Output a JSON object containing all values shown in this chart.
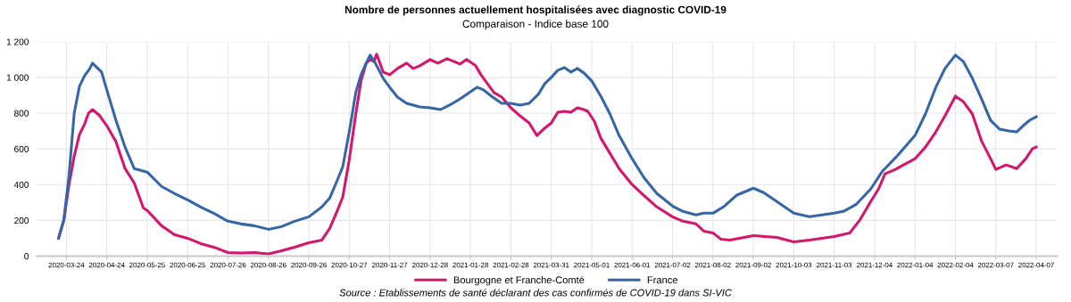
{
  "chart_data": {
    "type": "line",
    "title": "Nombre de personnes actuellement hospitalisées avec diagnostic COVID-19",
    "subtitle": "Comparaison - Indice base 100",
    "annotations": [
      "Source : Etablissements de santé déclarant des cas confirmés de COVID-19 dans SI-VIC"
    ],
    "xlim": [
      "2020-03-01",
      "2022-04-23"
    ],
    "xticks": [
      "2020-03-24",
      "2020-04-24",
      "2020-05-25",
      "2020-06-25",
      "2020-07-26",
      "2020-08-26",
      "2020-09-26",
      "2020-10-27",
      "2020-11-27",
      "2020-12-28",
      "2021-01-28",
      "2021-02-28",
      "2021-03-31",
      "2021-05-01",
      "2021-06-01",
      "2021-07-02",
      "2021-08-02",
      "2021-09-02",
      "2021-10-03",
      "2021-11-03",
      "2021-12-04",
      "2022-01-04",
      "2022-02-04",
      "2022-03-07",
      "2022-04-07"
    ],
    "ylim": [
      0,
      1200
    ],
    "yticks": [
      0,
      200,
      400,
      600,
      800,
      {
        "value": 1000,
        "label": "1 000"
      },
      {
        "value": 1200,
        "label": "1 200"
      }
    ],
    "grid": true,
    "legend": "bottom",
    "line_style": "solid",
    "marker": "none",
    "series": [
      {
        "name": "Bourgogne et Franche-Comté",
        "color": "#d6156c",
        "x": [
          "2020-03-18",
          "2020-03-22",
          "2020-03-26",
          "2020-03-30",
          "2020-04-03",
          "2020-04-07",
          "2020-04-10",
          "2020-04-13",
          "2020-04-18",
          "2020-04-24",
          "2020-05-01",
          "2020-05-08",
          "2020-05-15",
          "2020-05-22",
          "2020-05-25",
          "2020-06-05",
          "2020-06-15",
          "2020-06-25",
          "2020-07-05",
          "2020-07-15",
          "2020-07-26",
          "2020-08-05",
          "2020-08-15",
          "2020-08-26",
          "2020-09-05",
          "2020-09-15",
          "2020-09-26",
          "2020-10-06",
          "2020-10-12",
          "2020-10-17",
          "2020-10-22",
          "2020-10-27",
          "2020-11-01",
          "2020-11-05",
          "2020-11-09",
          "2020-11-12",
          "2020-11-15",
          "2020-11-17",
          "2020-11-22",
          "2020-11-27",
          "2020-12-03",
          "2020-12-10",
          "2020-12-15",
          "2020-12-20",
          "2020-12-28",
          "2021-01-03",
          "2021-01-10",
          "2021-01-20",
          "2021-01-25",
          "2021-02-01",
          "2021-02-05",
          "2021-02-10",
          "2021-02-15",
          "2021-02-21",
          "2021-02-28",
          "2021-03-07",
          "2021-03-14",
          "2021-03-20",
          "2021-03-25",
          "2021-03-31",
          "2021-04-05",
          "2021-04-10",
          "2021-04-15",
          "2021-04-20",
          "2021-04-25",
          "2021-04-28",
          "2021-05-03",
          "2021-05-08",
          "2021-05-15",
          "2021-05-22",
          "2021-06-01",
          "2021-06-10",
          "2021-06-20",
          "2021-07-02",
          "2021-07-10",
          "2021-07-20",
          "2021-07-26",
          "2021-08-02",
          "2021-08-08",
          "2021-08-15",
          "2021-09-02",
          "2021-09-20",
          "2021-10-03",
          "2021-10-15",
          "2021-11-03",
          "2021-11-15",
          "2021-11-23",
          "2021-12-01",
          "2021-12-07",
          "2021-12-12",
          "2021-12-20",
          "2022-01-04",
          "2022-01-12",
          "2022-01-20",
          "2022-01-27",
          "2022-02-04",
          "2022-02-10",
          "2022-02-17",
          "2022-02-24",
          "2022-03-03",
          "2022-03-07",
          "2022-03-15",
          "2022-03-23",
          "2022-03-30",
          "2022-04-04",
          "2022-04-07"
        ],
        "values": [
          100,
          200,
          400,
          560,
          680,
          740,
          800,
          820,
          790,
          730,
          640,
          490,
          410,
          270,
          255,
          170,
          120,
          100,
          70,
          50,
          20,
          17,
          20,
          12,
          30,
          50,
          75,
          90,
          155,
          240,
          330,
          540,
          795,
          980,
          1080,
          1100,
          1090,
          1130,
          1030,
          1015,
          1050,
          1080,
          1050,
          1065,
          1100,
          1080,
          1105,
          1075,
          1100,
          1065,
          1015,
          965,
          915,
          890,
          830,
          785,
          745,
          675,
          710,
          745,
          805,
          810,
          805,
          830,
          820,
          810,
          755,
          660,
          575,
          490,
          400,
          340,
          275,
          220,
          195,
          180,
          140,
          130,
          95,
          90,
          115,
          105,
          80,
          90,
          110,
          130,
          205,
          305,
          375,
          460,
          485,
          545,
          610,
          695,
          785,
          895,
          865,
          795,
          645,
          545,
          485,
          510,
          490,
          545,
          600,
          610
        ]
      },
      {
        "name": "France",
        "color": "#3567a8",
        "x": [
          "2020-03-18",
          "2020-03-22",
          "2020-03-26",
          "2020-03-30",
          "2020-04-03",
          "2020-04-07",
          "2020-04-11",
          "2020-04-13",
          "2020-04-20",
          "2020-04-24",
          "2020-05-01",
          "2020-05-08",
          "2020-05-15",
          "2020-05-25",
          "2020-06-05",
          "2020-06-15",
          "2020-06-25",
          "2020-07-05",
          "2020-07-15",
          "2020-07-26",
          "2020-08-05",
          "2020-08-15",
          "2020-08-26",
          "2020-09-05",
          "2020-09-15",
          "2020-09-26",
          "2020-10-06",
          "2020-10-12",
          "2020-10-17",
          "2020-10-22",
          "2020-10-27",
          "2020-11-01",
          "2020-11-05",
          "2020-11-09",
          "2020-11-12",
          "2020-11-16",
          "2020-11-22",
          "2020-11-27",
          "2020-12-03",
          "2020-12-10",
          "2020-12-20",
          "2020-12-28",
          "2021-01-05",
          "2021-01-12",
          "2021-01-20",
          "2021-01-28",
          "2021-02-02",
          "2021-02-07",
          "2021-02-14",
          "2021-02-21",
          "2021-02-28",
          "2021-03-07",
          "2021-03-14",
          "2021-03-21",
          "2021-03-26",
          "2021-03-31",
          "2021-04-05",
          "2021-04-10",
          "2021-04-15",
          "2021-04-20",
          "2021-04-25",
          "2021-05-01",
          "2021-05-08",
          "2021-05-15",
          "2021-05-22",
          "2021-06-01",
          "2021-06-10",
          "2021-06-20",
          "2021-07-02",
          "2021-07-10",
          "2021-07-20",
          "2021-07-26",
          "2021-08-02",
          "2021-08-10",
          "2021-08-20",
          "2021-09-02",
          "2021-09-10",
          "2021-09-20",
          "2021-10-03",
          "2021-10-15",
          "2021-11-03",
          "2021-11-10",
          "2021-11-20",
          "2021-12-01",
          "2021-12-10",
          "2021-12-20",
          "2022-01-04",
          "2022-01-12",
          "2022-01-20",
          "2022-01-27",
          "2022-02-04",
          "2022-02-10",
          "2022-02-17",
          "2022-02-24",
          "2022-03-03",
          "2022-03-10",
          "2022-03-17",
          "2022-03-23",
          "2022-03-28",
          "2022-04-02",
          "2022-04-07"
        ],
        "values": [
          100,
          200,
          450,
          800,
          950,
          1010,
          1050,
          1080,
          1030,
          930,
          760,
          610,
          490,
          470,
          390,
          350,
          315,
          275,
          240,
          195,
          180,
          170,
          150,
          165,
          195,
          220,
          275,
          325,
          410,
          500,
          695,
          915,
          1015,
          1080,
          1125,
          1080,
          995,
          945,
          890,
          855,
          835,
          830,
          820,
          845,
          880,
          920,
          945,
          930,
          890,
          855,
          855,
          845,
          855,
          905,
          965,
          1000,
          1040,
          1055,
          1030,
          1050,
          1025,
          980,
          895,
          795,
          675,
          545,
          440,
          350,
          280,
          250,
          230,
          240,
          240,
          275,
          340,
          380,
          355,
          305,
          240,
          220,
          240,
          250,
          290,
          375,
          475,
          550,
          675,
          795,
          945,
          1050,
          1125,
          1090,
          995,
          880,
          760,
          710,
          700,
          695,
          730,
          760,
          780
        ]
      }
    ]
  }
}
